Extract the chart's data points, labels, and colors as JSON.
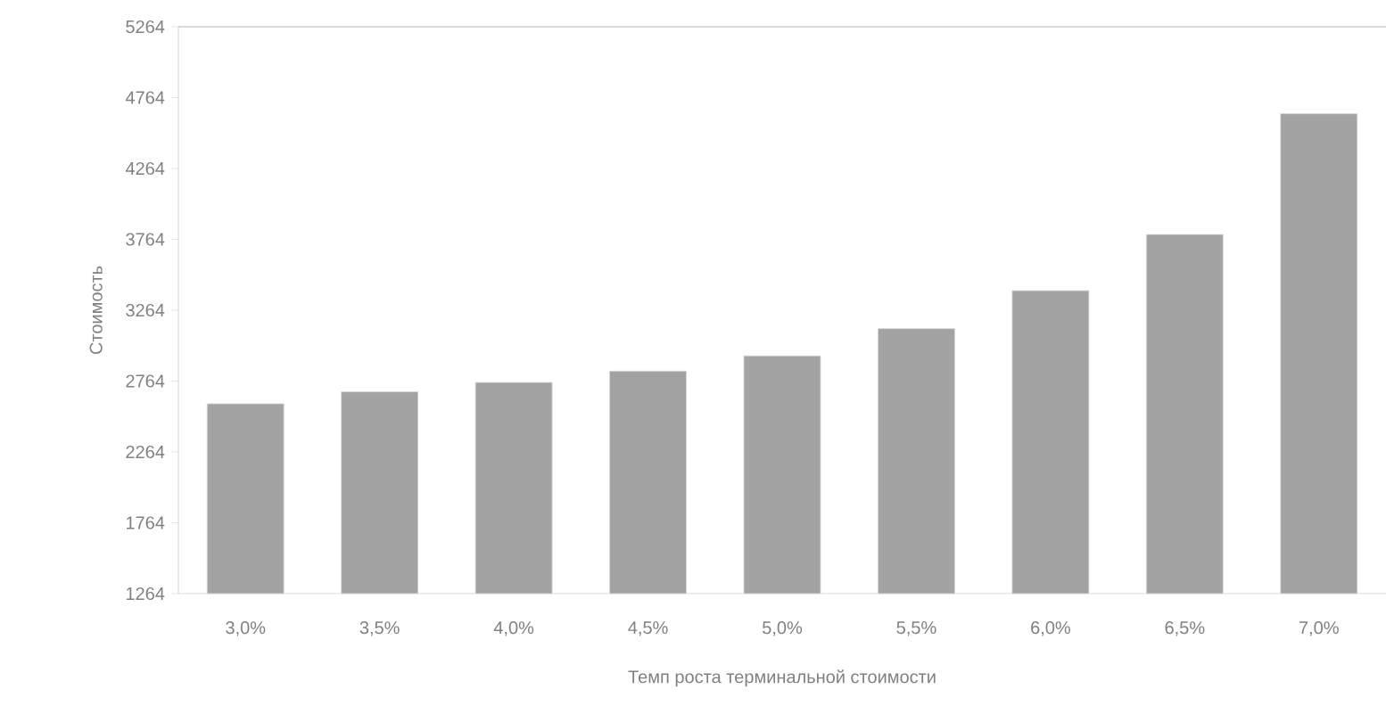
{
  "chart_data": {
    "type": "bar",
    "xlabel": "Темп роста терминальной стоимости",
    "ylabel": "Стоимость",
    "categories": [
      "3,0%",
      "3,5%",
      "4,0%",
      "4,5%",
      "5,0%",
      "5,5%",
      "6,0%",
      "6,5%",
      "7,0%"
    ],
    "values": [
      2604,
      2688,
      2754,
      2834,
      2942,
      3134,
      3402,
      3798,
      4650
    ],
    "color": "#a3a3a3",
    "ylim": [
      1264,
      5264
    ],
    "yticks": [
      1264,
      1764,
      2264,
      2764,
      3264,
      3764,
      4264,
      4764,
      5264
    ]
  }
}
